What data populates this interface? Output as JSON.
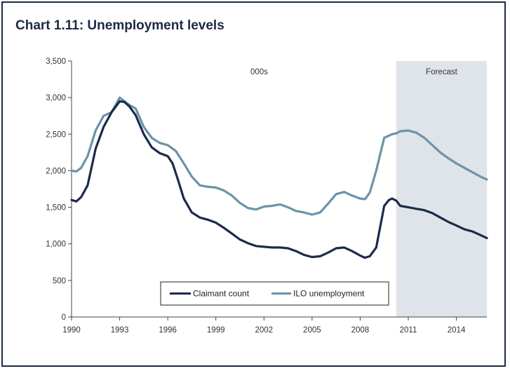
{
  "chart_data": {
    "type": "line",
    "title": "Chart 1.11: Unemployment levels",
    "unit_note": "000s",
    "forecast_label": "Forecast",
    "forecast_start": 2010.25,
    "xlim": [
      1990,
      2015.9
    ],
    "ylim": [
      0,
      3500
    ],
    "x_ticks": [
      1990,
      1993,
      1996,
      1999,
      2002,
      2005,
      2008,
      2011,
      2014
    ],
    "y_ticks": [
      0,
      500,
      1000,
      1500,
      2000,
      2500,
      3000,
      3500
    ],
    "y_tick_labels": [
      "0",
      "500",
      "1,000",
      "1,500",
      "2,000",
      "2,500",
      "3,000",
      "3,500"
    ],
    "grid": false,
    "legend_position": "bottom-center",
    "colors": {
      "claimant": "#1c2a4a",
      "ilo": "#6a93a8",
      "forecast_shade": "#dfe4ea",
      "frame": "#1c2a44"
    },
    "series": [
      {
        "name": "Claimant count",
        "key": "claimant",
        "x": [
          1990,
          1990.3,
          1990.6,
          1991,
          1991.5,
          1992,
          1992.5,
          1993,
          1993.3,
          1993.6,
          1994,
          1994.5,
          1995,
          1995.5,
          1996,
          1996.3,
          1996.6,
          1997,
          1997.5,
          1998,
          1998.5,
          1999,
          1999.5,
          2000,
          2000.5,
          2001,
          2001.5,
          2002,
          2002.5,
          2003,
          2003.5,
          2004,
          2004.5,
          2005,
          2005.5,
          2006,
          2006.5,
          2007,
          2007.5,
          2008,
          2008.3,
          2008.6,
          2009,
          2009.5,
          2009.8,
          2010,
          2010.25,
          2010.5,
          2011,
          2011.5,
          2012,
          2012.5,
          2013,
          2013.5,
          2014,
          2014.5,
          2015,
          2015.5,
          2015.9
        ],
        "values": [
          1600,
          1580,
          1640,
          1800,
          2300,
          2600,
          2800,
          2950,
          2940,
          2880,
          2760,
          2500,
          2320,
          2240,
          2200,
          2100,
          1900,
          1620,
          1430,
          1360,
          1330,
          1290,
          1220,
          1140,
          1060,
          1010,
          970,
          960,
          950,
          950,
          940,
          900,
          850,
          820,
          830,
          880,
          940,
          950,
          900,
          840,
          810,
          830,
          950,
          1520,
          1600,
          1620,
          1590,
          1520,
          1500,
          1480,
          1460,
          1420,
          1360,
          1300,
          1250,
          1200,
          1170,
          1120,
          1080
        ]
      },
      {
        "name": "ILO unemployment",
        "key": "ilo",
        "x": [
          1990,
          1990.3,
          1990.6,
          1991,
          1991.5,
          1992,
          1992.5,
          1993,
          1993.3,
          1993.6,
          1994,
          1994.5,
          1995,
          1995.5,
          1996,
          1996.5,
          1997,
          1997.5,
          1998,
          1998.5,
          1999,
          1999.5,
          2000,
          2000.5,
          2001,
          2001.5,
          2002,
          2002.5,
          2003,
          2003.5,
          2004,
          2004.5,
          2005,
          2005.5,
          2006,
          2006.5,
          2007,
          2007.5,
          2008,
          2008.3,
          2008.6,
          2009,
          2009.5,
          2010,
          2010.25,
          2010.5,
          2011,
          2011.5,
          2012,
          2012.5,
          2013,
          2013.5,
          2014,
          2014.5,
          2015,
          2015.5,
          2015.9
        ],
        "values": [
          2000,
          1990,
          2040,
          2200,
          2550,
          2750,
          2800,
          3000,
          2950,
          2900,
          2850,
          2600,
          2450,
          2380,
          2350,
          2270,
          2100,
          1920,
          1800,
          1780,
          1770,
          1730,
          1660,
          1560,
          1490,
          1470,
          1510,
          1520,
          1540,
          1500,
          1450,
          1430,
          1400,
          1430,
          1550,
          1680,
          1710,
          1660,
          1620,
          1610,
          1700,
          2000,
          2450,
          2500,
          2510,
          2540,
          2550,
          2520,
          2450,
          2350,
          2250,
          2170,
          2100,
          2040,
          1980,
          1920,
          1880
        ]
      }
    ]
  }
}
